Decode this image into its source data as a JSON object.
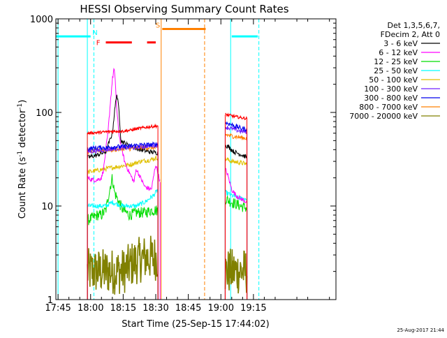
{
  "chart_data": {
    "type": "line",
    "title": "HESSI Observing Summary Count Rates",
    "xlabel": "Start Time (25-Sep-15 17:44:02)",
    "ylabel": "Count Rate (s",
    "ylabel_sup1": "-1",
    "ylabel_mid": " detector",
    "ylabel_sup2": "-1",
    "ylabel_end": ")",
    "y_scale": "log",
    "ylim": [
      1,
      1000
    ],
    "xlim_minutes": [
      -1,
      128
    ],
    "x_ticks": [
      {
        "label": "17:45",
        "minutes": 0
      },
      {
        "label": "18:00",
        "minutes": 15
      },
      {
        "label": "18:15",
        "minutes": 30
      },
      {
        "label": "18:30",
        "minutes": 45
      },
      {
        "label": "18:45",
        "minutes": 60
      },
      {
        "label": "19:00",
        "minutes": 75
      },
      {
        "label": "19:15",
        "minutes": 90
      }
    ],
    "y_ticks": [
      {
        "label": "1",
        "value": 1
      },
      {
        "label": "10",
        "value": 10
      },
      {
        "label": "100",
        "value": 100
      },
      {
        "label": "1000",
        "value": 1000
      }
    ],
    "legend_header": [
      "Det 1,3,5,6,7,",
      "FDecim 2, Att 0"
    ],
    "legend_position": "right",
    "footer_date": "25-Aug-2017 21:44",
    "series": [
      {
        "name": "3 - 6 keV",
        "color": "#000000",
        "segments": [
          [
            [
              13.5,
              33
            ],
            [
              18,
              35
            ],
            [
              22,
              38
            ],
            [
              25,
              60
            ],
            [
              26,
              100
            ],
            [
              27,
              160
            ],
            [
              28,
              110
            ],
            [
              29,
              50
            ],
            [
              32,
              45
            ],
            [
              35,
              42
            ],
            [
              38,
              40
            ],
            [
              42,
              38
            ],
            [
              46,
              37
            ]
          ],
          [
            [
              77,
              45
            ],
            [
              79,
              42
            ],
            [
              81,
              38
            ],
            [
              85,
              35
            ],
            [
              87,
              33
            ]
          ]
        ]
      },
      {
        "name": "6 - 12 keV",
        "color": "#ff00ff",
        "segments": [
          [
            [
              13.5,
              20
            ],
            [
              16,
              19
            ],
            [
              18,
              19
            ],
            [
              20,
              20
            ],
            [
              21,
              25
            ],
            [
              22,
              40
            ],
            [
              23,
              60
            ],
            [
              24,
              120
            ],
            [
              25,
              220
            ],
            [
              25.8,
              300
            ],
            [
              26.5,
              190
            ],
            [
              27,
              110
            ],
            [
              28,
              60
            ],
            [
              29,
              45
            ],
            [
              30,
              35
            ],
            [
              31,
              28
            ],
            [
              32,
              25
            ],
            [
              34,
              20
            ],
            [
              35,
              18
            ],
            [
              36,
              25
            ],
            [
              38,
              20
            ],
            [
              40,
              16
            ],
            [
              43,
              15
            ],
            [
              45,
              28
            ],
            [
              47,
              18
            ]
          ],
          [
            [
              77,
              25
            ],
            [
              78,
              22
            ],
            [
              80,
              15
            ],
            [
              82,
              13
            ],
            [
              84,
              12
            ],
            [
              87,
              11
            ]
          ]
        ]
      },
      {
        "name": "12 - 25 keV",
        "color": "#00dd00",
        "segments": [
          [
            [
              13.5,
              7
            ],
            [
              16,
              7.5
            ],
            [
              18,
              8
            ],
            [
              20,
              8
            ],
            [
              22,
              9
            ],
            [
              23,
              12
            ],
            [
              24,
              16
            ],
            [
              25,
              20
            ],
            [
              26,
              14
            ],
            [
              28,
              11
            ],
            [
              30,
              9
            ],
            [
              33,
              8
            ],
            [
              36,
              8.5
            ],
            [
              40,
              8.5
            ],
            [
              43,
              9
            ],
            [
              46,
              9
            ]
          ],
          [
            [
              77,
              12
            ],
            [
              80,
              11
            ],
            [
              84,
              10
            ],
            [
              87,
              9.5
            ]
          ]
        ]
      },
      {
        "name": "25 - 50 keV",
        "color": "#00ffff",
        "segments": [
          [
            [
              13.5,
              10
            ],
            [
              18,
              10
            ],
            [
              22,
              10
            ],
            [
              25,
              11
            ],
            [
              27,
              10.5
            ],
            [
              30,
              10
            ],
            [
              33,
              10
            ],
            [
              36,
              10
            ],
            [
              40,
              11
            ],
            [
              44,
              13
            ],
            [
              46,
              15
            ]
          ],
          [
            [
              77,
              14
            ],
            [
              80,
              13
            ],
            [
              84,
              12
            ],
            [
              87,
              12
            ]
          ]
        ]
      },
      {
        "name": "50 - 100 keV",
        "color": "#e0c000",
        "segments": [
          [
            [
              13.5,
              23
            ],
            [
              18,
              24
            ],
            [
              22,
              25
            ],
            [
              26,
              26
            ],
            [
              30,
              27
            ],
            [
              34,
              28
            ],
            [
              38,
              30
            ],
            [
              42,
              31
            ],
            [
              46,
              33
            ]
          ],
          [
            [
              77,
              32
            ],
            [
              80,
              30
            ],
            [
              84,
              29
            ],
            [
              87,
              28
            ]
          ]
        ]
      },
      {
        "name": "100 - 300 keV",
        "color": "#7020ff",
        "segments": [
          [
            [
              13.5,
              38
            ],
            [
              18,
              39
            ],
            [
              22,
              40
            ],
            [
              26,
              41
            ],
            [
              30,
              42
            ],
            [
              34,
              42
            ],
            [
              38,
              43
            ],
            [
              42,
              44
            ],
            [
              46,
              45
            ]
          ],
          [
            [
              77,
              70
            ],
            [
              80,
              67
            ],
            [
              84,
              63
            ],
            [
              87,
              62
            ]
          ]
        ]
      },
      {
        "name": "300 - 800 keV",
        "color": "#0000ee",
        "segments": [
          [
            [
              13.5,
              41
            ],
            [
              18,
              42
            ],
            [
              22,
              42
            ],
            [
              26,
              43
            ],
            [
              30,
              43
            ],
            [
              34,
              44
            ],
            [
              38,
              45
            ],
            [
              42,
              45
            ],
            [
              46,
              46
            ]
          ],
          [
            [
              77,
              78
            ],
            [
              80,
              74
            ],
            [
              84,
              68
            ],
            [
              87,
              66
            ]
          ]
        ]
      },
      {
        "name": "800 - 7000 keV",
        "color": "#ff8000",
        "segments": [
          [
            [
              13.5,
              38
            ],
            [
              18,
              39
            ],
            [
              22,
              40
            ],
            [
              26,
              40
            ],
            [
              30,
              41
            ],
            [
              34,
              41
            ],
            [
              38,
              42
            ],
            [
              42,
              42
            ],
            [
              46,
              42
            ]
          ],
          [
            [
              77,
              58
            ],
            [
              80,
              56
            ],
            [
              84,
              54
            ],
            [
              87,
              53
            ]
          ]
        ]
      },
      {
        "name": "7000 - 20000 keV",
        "color": "#808000",
        "segments": [
          [
            [
              13.5,
              2
            ],
            [
              25,
              2
            ],
            [
              30,
              2
            ],
            [
              35,
              2.5
            ],
            [
              40,
              2.8
            ],
            [
              46,
              2.8
            ]
          ],
          [
            [
              77,
              2
            ],
            [
              87,
              2
            ]
          ]
        ]
      }
    ],
    "red_series_color": "#ff0000",
    "red_segments": [
      [
        [
          13.5,
          60
        ],
        [
          18,
          61
        ],
        [
          22,
          62
        ],
        [
          26,
          63
        ],
        [
          30,
          63
        ],
        [
          34,
          65
        ],
        [
          38,
          68
        ],
        [
          42,
          70
        ],
        [
          46,
          72
        ]
      ],
      [
        [
          77,
          95
        ],
        [
          80,
          92
        ],
        [
          84,
          88
        ],
        [
          87,
          86
        ]
      ]
    ],
    "flag_bars": [
      {
        "label": "N",
        "color": "#00ffff",
        "y": 650,
        "ranges": [
          [
            -1,
            15
          ],
          [
            80,
            92
          ]
        ],
        "label_at": 17
      },
      {
        "label": "F",
        "color": "#ff0000",
        "y": 560,
        "ranges": [
          [
            22,
            34
          ],
          [
            41,
            45
          ]
        ],
        "label_at": 18.5
      },
      {
        "label": "S",
        "color": "#ff8000",
        "y": 780,
        "ranges": [
          [
            48,
            68
          ]
        ],
        "label_at": 46
      }
    ],
    "vlines": [
      {
        "minutes": 0,
        "color": "#00ffff",
        "dashed": false
      },
      {
        "minutes": 13.5,
        "color": "#00ffff",
        "dashed": false
      },
      {
        "minutes": 16.5,
        "color": "#00ffff",
        "dashed": true
      },
      {
        "minutes": 47.5,
        "color": "#ff8000",
        "dashed": false
      },
      {
        "minutes": 67.5,
        "color": "#ff8000",
        "dashed": true
      },
      {
        "minutes": 79.5,
        "color": "#00ffff",
        "dashed": false
      },
      {
        "minutes": 92.5,
        "color": "#00ffff",
        "dashed": true
      }
    ]
  }
}
